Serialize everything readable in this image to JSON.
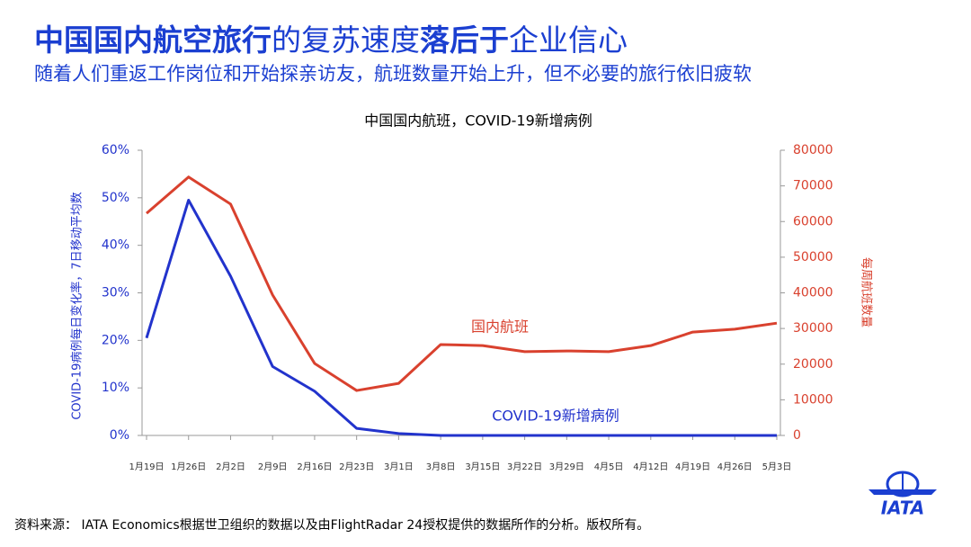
{
  "header": {
    "title": [
      "中国国内航空旅行",
      "的复苏速度",
      "落后于",
      "企业信心"
    ],
    "subtitle": "随着人们重返工作岗位和开始探亲访友，航班数量开始上升，但不必要的旅行依旧疲软"
  },
  "chart_data": {
    "type": "line",
    "title": "中国国内航班，COVID-19新增病例",
    "categories": [
      "1月19日",
      "1月26日",
      "2月2日",
      "2月9日",
      "2月16日",
      "2月23日",
      "3月1日",
      "3月8日",
      "3月15日",
      "3月22日",
      "3月29日",
      "4月5日",
      "4月12日",
      "4月19日",
      "4月26日",
      "5月3日"
    ],
    "series": [
      {
        "name": "COVID-19新增病例",
        "color": "#2233cc",
        "values": [
          20.5,
          49.5,
          33.5,
          14.5,
          9.3,
          1.5,
          0.4,
          0,
          0,
          0,
          0,
          0,
          0,
          0,
          0,
          0
        ]
      },
      {
        "name": "国内航班",
        "color": "#d9412e",
        "axis": "y2",
        "values": [
          62300,
          72500,
          64900,
          39400,
          20200,
          12600,
          14600,
          25500,
          25200,
          23500,
          23700,
          23500,
          25200,
          29000,
          29800,
          31500
        ]
      }
    ],
    "ylabel": "COVID-19病例每日变化率，7日移动平均数",
    "y2label": "每周航班数量",
    "ylim": [
      0,
      60
    ],
    "yticks": [
      {
        "value": 0,
        "label": "0%"
      },
      {
        "value": 10,
        "label": "10%"
      },
      {
        "value": 20,
        "label": "20%"
      },
      {
        "value": 30,
        "label": "30%"
      },
      {
        "value": 40,
        "label": "40%"
      },
      {
        "value": 50,
        "label": "50%"
      },
      {
        "value": 60,
        "label": "60%"
      }
    ],
    "y2lim": [
      0,
      80000
    ],
    "y2ticks": [
      0,
      10000,
      20000,
      30000,
      40000,
      50000,
      60000,
      70000,
      80000
    ]
  },
  "footer": {
    "source": "资料来源：  IATA Economics根据世卫组织的数据以及由FlightRadar 24授权提供的数据所作的分析。版权所有。",
    "logo": "IATA"
  }
}
